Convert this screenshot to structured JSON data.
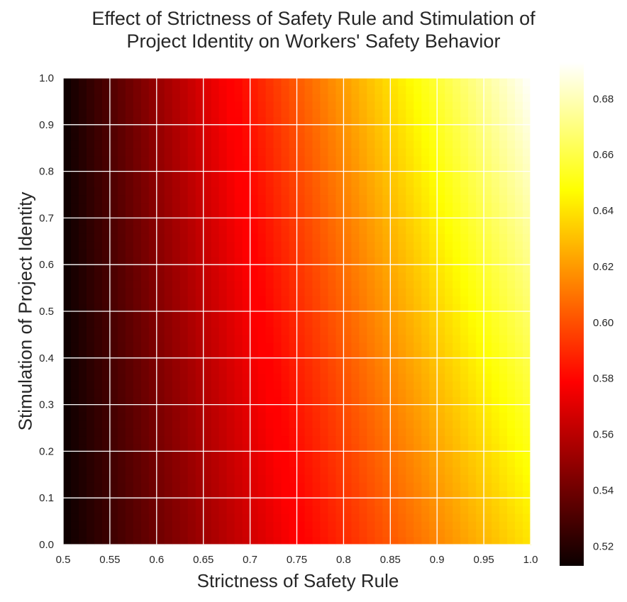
{
  "chart_data": {
    "type": "heatmap",
    "title_lines": [
      "Effect of Strictness of Safety Rule and Stimulation of",
      "Project Identity on Workers' Safety Behavior"
    ],
    "xlabel": "Strictness of Safety Rule",
    "ylabel": "Stimulation of Project Identity",
    "x_ticks": [
      "0.5",
      "0.55",
      "0.6",
      "0.65",
      "0.7",
      "0.75",
      "0.8",
      "0.85",
      "0.9",
      "0.95",
      "1.0"
    ],
    "y_ticks": [
      "0.0",
      "0.1",
      "0.2",
      "0.3",
      "0.4",
      "0.5",
      "0.6",
      "0.7",
      "0.8",
      "0.9",
      "1.0"
    ],
    "xlim": [
      0.5,
      1.0
    ],
    "ylim": [
      0.0,
      1.0
    ],
    "colormap": "hot",
    "colorbar": {
      "ticks": [
        "0.52",
        "0.54",
        "0.56",
        "0.58",
        "0.60",
        "0.62",
        "0.64",
        "0.66",
        "0.68"
      ],
      "range": [
        0.513,
        0.693
      ]
    },
    "grid": true,
    "value_model": {
      "corner_x0_y0": 0.513,
      "corner_x1_y0": 0.64,
      "corner_x0_y1": 0.513,
      "corner_x1_y1": 0.693
    }
  }
}
